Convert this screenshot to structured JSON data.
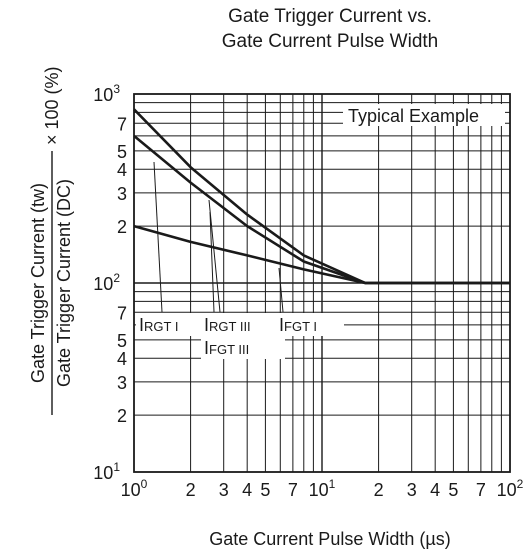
{
  "chart_data": {
    "type": "line",
    "title_line1": "Gate Trigger Current vs.",
    "title_line2": "Gate Current Pulse Width",
    "xlabel": "Gate Current Pulse Width  (µs)",
    "ylabel_numerator": "Gate Trigger Current  (tw)",
    "ylabel_denominator": "Gate Trigger Current  (DC)",
    "ylabel_suffix": "× 100 (%)",
    "annotation": "Typical Example",
    "x_scale": "log",
    "y_scale": "log",
    "xlim": [
      1,
      100
    ],
    "ylim": [
      10,
      1000
    ],
    "x_tick_labels": [
      {
        "value": 1,
        "mantissa": "10",
        "exp": "0"
      },
      {
        "value": 2,
        "mantissa": "2",
        "exp": ""
      },
      {
        "value": 3,
        "mantissa": "3",
        "exp": ""
      },
      {
        "value": 4,
        "mantissa": "4",
        "exp": ""
      },
      {
        "value": 5,
        "mantissa": "5",
        "exp": ""
      },
      {
        "value": 7,
        "mantissa": "7",
        "exp": ""
      },
      {
        "value": 10,
        "mantissa": "10",
        "exp": "1"
      },
      {
        "value": 20,
        "mantissa": "2",
        "exp": ""
      },
      {
        "value": 30,
        "mantissa": "3",
        "exp": ""
      },
      {
        "value": 40,
        "mantissa": "4",
        "exp": ""
      },
      {
        "value": 50,
        "mantissa": "5",
        "exp": ""
      },
      {
        "value": 70,
        "mantissa": "7",
        "exp": ""
      },
      {
        "value": 100,
        "mantissa": "10",
        "exp": "2"
      }
    ],
    "y_tick_labels": [
      {
        "value": 1000,
        "mantissa": "10",
        "exp": "3"
      },
      {
        "value": 700,
        "mantissa": "7",
        "exp": ""
      },
      {
        "value": 500,
        "mantissa": "5",
        "exp": ""
      },
      {
        "value": 400,
        "mantissa": "4",
        "exp": ""
      },
      {
        "value": 300,
        "mantissa": "3",
        "exp": ""
      },
      {
        "value": 200,
        "mantissa": "2",
        "exp": ""
      },
      {
        "value": 100,
        "mantissa": "10",
        "exp": "2"
      },
      {
        "value": 70,
        "mantissa": "7",
        "exp": ""
      },
      {
        "value": 50,
        "mantissa": "5",
        "exp": ""
      },
      {
        "value": 40,
        "mantissa": "4",
        "exp": ""
      },
      {
        "value": 30,
        "mantissa": "3",
        "exp": ""
      },
      {
        "value": 20,
        "mantissa": "2",
        "exp": ""
      },
      {
        "value": 10,
        "mantissa": "10",
        "exp": "1"
      }
    ],
    "series": [
      {
        "name": "IRGT I",
        "main": "I",
        "sub": "RGT I",
        "x": [
          1,
          2,
          4,
          8,
          17,
          100
        ],
        "y": [
          830,
          410,
          230,
          140,
          100,
          100
        ]
      },
      {
        "name": "IRGT III, IFGT III",
        "main": "I",
        "sub": "RGT III",
        "sub2": "FGT III",
        "x": [
          1,
          2,
          4,
          8,
          17,
          100
        ],
        "y": [
          600,
          340,
          200,
          130,
          100,
          100
        ]
      },
      {
        "name": "IFGT I",
        "main": "I",
        "sub": "FGT I",
        "x": [
          1,
          2,
          4,
          8,
          17,
          100
        ],
        "y": [
          200,
          165,
          140,
          118,
          100,
          100
        ]
      }
    ],
    "line_color": "#1a1a1a",
    "grid": true
  }
}
